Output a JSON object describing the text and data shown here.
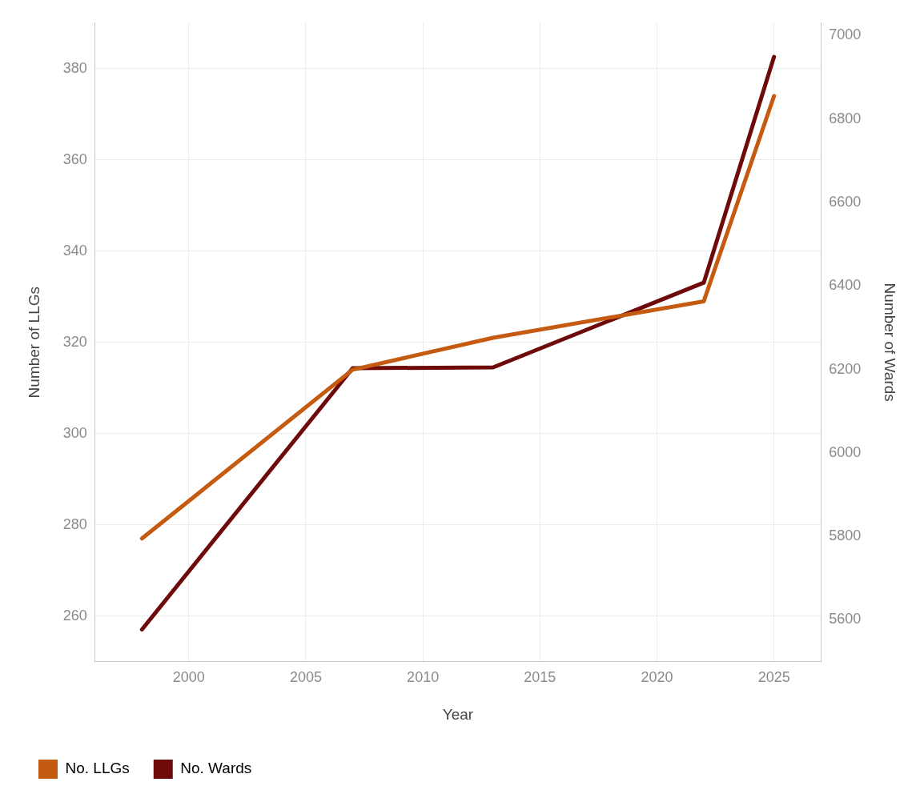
{
  "chart_data": {
    "type": "line",
    "xlabel": "Year",
    "ylabel": "Number of LLGs",
    "y2label": "Number of Wards",
    "x": [
      1998,
      2007,
      2013,
      2022,
      2025
    ],
    "series": [
      {
        "name": "No. LLGs",
        "color": "#c55a11",
        "values": [
          277,
          314,
          321,
          329,
          374
        ]
      },
      {
        "name": "No. Wards",
        "color": "#6e0a0a",
        "axis": "y2",
        "values": [
          5577,
          6203,
          6205,
          6408,
          6949
        ]
      }
    ],
    "xlim": [
      1996,
      2027
    ],
    "xticks": [
      2000,
      2005,
      2010,
      2015,
      2020,
      2025
    ],
    "ylim": [
      250,
      390
    ],
    "yticks": [
      260,
      280,
      300,
      320,
      340,
      360,
      380
    ],
    "y2lim": [
      5500,
      7030
    ],
    "y2ticks": [
      5600,
      5800,
      6000,
      6200,
      6400,
      6600,
      6800,
      7000
    ],
    "grid": true,
    "legend": "bottom left",
    "marker": "none",
    "line_style": "solid"
  }
}
